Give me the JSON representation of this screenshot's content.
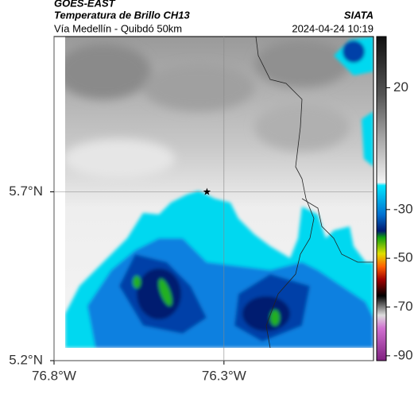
{
  "chart_data": {
    "type": "map",
    "title": "GOES-EAST",
    "subtitle": "Temperatura de Brillo CH13",
    "source": "SIATA",
    "region": "Vía Medellín - Quibdó 50km",
    "timestamp": "2024-04-24 10:19",
    "xlim": [
      -76.8,
      -75.86
    ],
    "ylim": [
      5.2,
      6.16
    ],
    "xticks": [
      {
        "value": -76.8,
        "label": "76.8°W"
      },
      {
        "value": -76.3,
        "label": "76.3°W"
      }
    ],
    "yticks": [
      {
        "value": 5.2,
        "label": "5.2°N"
      },
      {
        "value": 5.7,
        "label": "5.7°N"
      }
    ],
    "grid": true,
    "colorbar": {
      "lim": [
        -92,
        41
      ],
      "ticks": [
        20,
        -30,
        -50,
        -70,
        -90
      ]
    },
    "marker": {
      "lon": -76.35,
      "lat": 5.7
    }
  }
}
